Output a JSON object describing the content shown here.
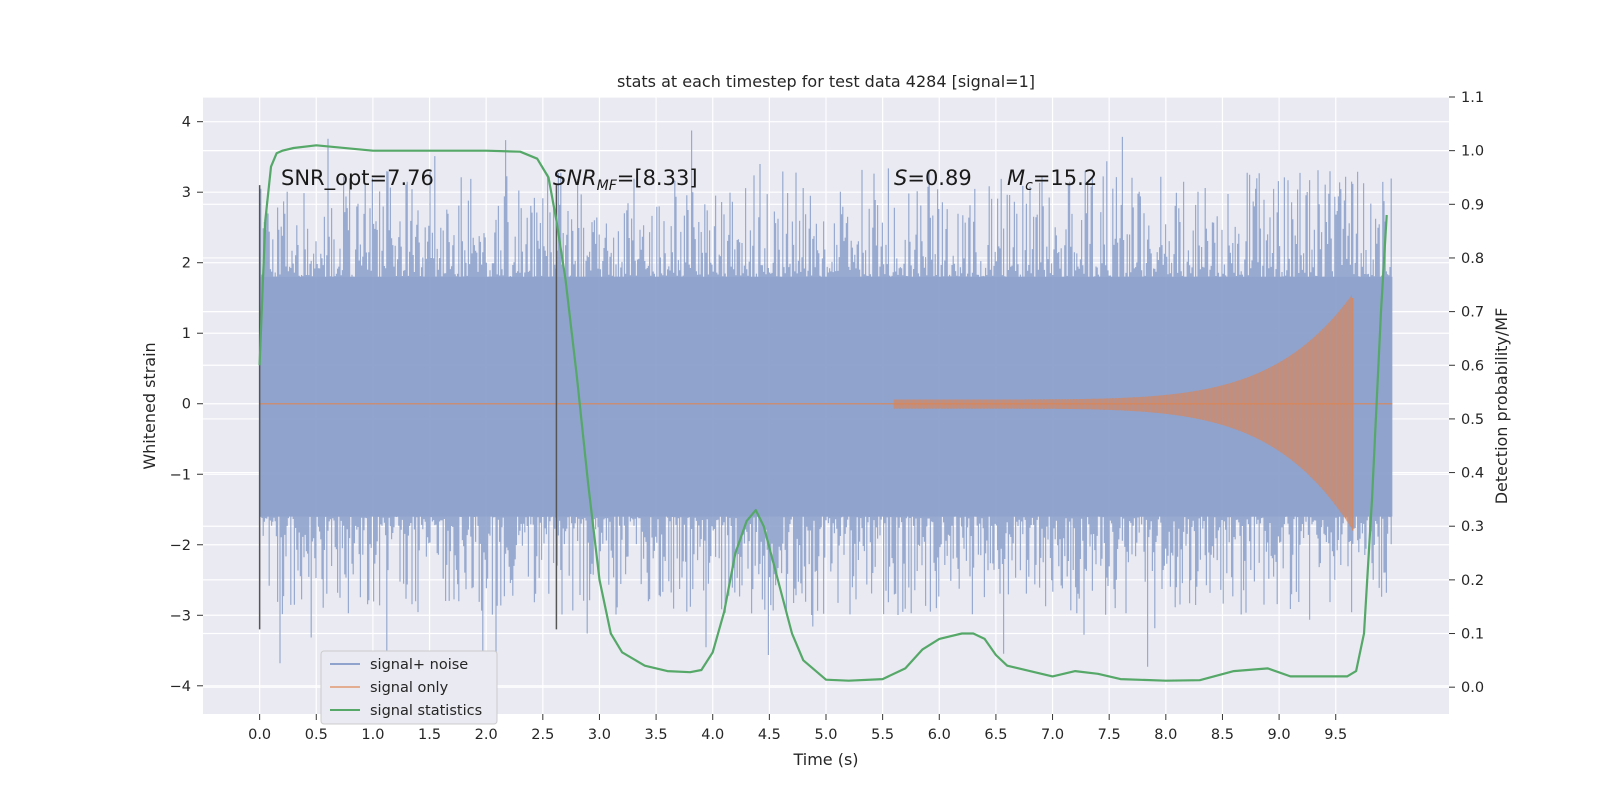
{
  "chart_data": {
    "type": "line",
    "title": "stats at each timestep for test data 4284 [signal=1]",
    "xlabel": "Time (s)",
    "ylabel": "Whitened strain",
    "ylabel_right": "Detection probability/MF",
    "xlim": [
      -0.5,
      10.5
    ],
    "ylim": [
      -4.4,
      4.35
    ],
    "ylim_right": [
      -0.05,
      1.1
    ],
    "x_ticks": [
      "0.0",
      "0.5",
      "1.0",
      "1.5",
      "2.0",
      "2.5",
      "3.0",
      "3.5",
      "4.0",
      "4.5",
      "5.0",
      "5.5",
      "6.0",
      "6.5",
      "7.0",
      "7.5",
      "8.0",
      "8.5",
      "9.0",
      "9.5"
    ],
    "y_ticks": [
      "4",
      "3",
      "2",
      "1",
      "0",
      "−1",
      "−2",
      "−3",
      "−4"
    ],
    "y_ticks_right": [
      "1.1",
      "1.0",
      "0.9",
      "0.8",
      "0.7",
      "0.6",
      "0.5",
      "0.4",
      "0.3",
      "0.2",
      "0.1",
      "0.0"
    ],
    "grid": true,
    "legend_position": "lower-left",
    "colors": {
      "background": "#eaeaf2",
      "grid": "#ffffff",
      "noise": "#8fa3cc",
      "signal": "#dd8452",
      "stats": "#55a868",
      "markers": "#555555"
    },
    "series": [
      {
        "name": "signal+ noise",
        "kind": "noise-band",
        "x_range": [
          0.0,
          10.0
        ],
        "dense_band": [
          -1.6,
          1.8
        ],
        "peaks_max": [
          3.7,
          3.9,
          3.6,
          3.4,
          3.3
        ],
        "peaks_min": [
          -3.2,
          -3.6,
          -3.9,
          -3.4,
          -3.4
        ]
      },
      {
        "name": "signal only",
        "kind": "chirp",
        "start": 5.6,
        "merger": 9.65,
        "end": 10.0,
        "peak_amp": 1.5
      },
      {
        "name": "signal statistics",
        "kind": "line",
        "axis": "right",
        "x": [
          0.0,
          0.05,
          0.1,
          0.15,
          0.2,
          0.3,
          0.5,
          1.0,
          1.5,
          2.0,
          2.3,
          2.45,
          2.55,
          2.62,
          2.7,
          2.8,
          2.9,
          3.0,
          3.1,
          3.2,
          3.4,
          3.6,
          3.8,
          3.9,
          4.0,
          4.1,
          4.2,
          4.3,
          4.38,
          4.45,
          4.5,
          4.6,
          4.7,
          4.8,
          5.0,
          5.2,
          5.5,
          5.7,
          5.85,
          6.0,
          6.2,
          6.3,
          6.4,
          6.5,
          6.6,
          6.8,
          7.0,
          7.2,
          7.4,
          7.6,
          8.0,
          8.3,
          8.6,
          8.9,
          9.1,
          9.3,
          9.5,
          9.6,
          9.68,
          9.75,
          9.82,
          9.9,
          9.95
        ],
        "y": [
          0.6,
          0.87,
          0.97,
          0.995,
          1.0,
          1.005,
          1.01,
          1.0,
          1.0,
          1.0,
          0.998,
          0.985,
          0.95,
          0.87,
          0.76,
          0.58,
          0.38,
          0.2,
          0.1,
          0.065,
          0.04,
          0.03,
          0.028,
          0.032,
          0.065,
          0.14,
          0.25,
          0.31,
          0.33,
          0.3,
          0.26,
          0.18,
          0.1,
          0.05,
          0.014,
          0.012,
          0.015,
          0.035,
          0.07,
          0.09,
          0.1,
          0.1,
          0.09,
          0.06,
          0.04,
          0.03,
          0.02,
          0.03,
          0.025,
          0.015,
          0.012,
          0.013,
          0.03,
          0.035,
          0.02,
          0.02,
          0.02,
          0.02,
          0.03,
          0.1,
          0.35,
          0.7,
          0.88
        ]
      }
    ],
    "vertical_markers": [
      0.0,
      2.62
    ],
    "annotations": [
      {
        "id": "snr_opt",
        "label": "SNR_opt=7.76",
        "x": 0.2
      },
      {
        "id": "snr_mf",
        "base": "SNR",
        "sub": "MF",
        "rest": "=[8.33]",
        "x": 2.62
      },
      {
        "id": "s_stat",
        "base": "S",
        "rest": "=0.89",
        "x": 5.62
      },
      {
        "id": "mc",
        "base": "M",
        "sub": "c",
        "rest": "=15.2",
        "x": 6.62
      }
    ]
  }
}
